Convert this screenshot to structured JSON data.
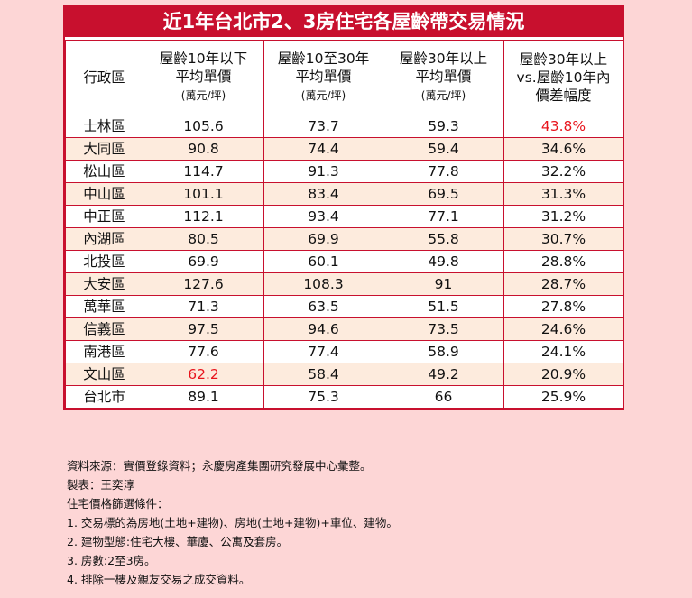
{
  "chart_data": {
    "type": "table",
    "title": "近1年台北市2、3房住宅各屋齡帶交易情況",
    "columns": [
      {
        "lines": [
          "行政區"
        ],
        "unit": ""
      },
      {
        "lines": [
          "屋齡10年以下",
          "平均單價"
        ],
        "unit": "(萬元/坪)"
      },
      {
        "lines": [
          "屋齡10至30年",
          "平均單價"
        ],
        "unit": "(萬元/坪)"
      },
      {
        "lines": [
          "屋齡30年以上",
          "平均單價"
        ],
        "unit": "(萬元/坪)"
      },
      {
        "lines": [
          "屋齡30年以上",
          "vs.屋齡10年內",
          "價差幅度"
        ],
        "unit": ""
      }
    ],
    "rows": [
      {
        "district": "士林區",
        "age_under_10": "105.6",
        "age_10_30": "73.7",
        "age_over_30": "59.3",
        "gap": "43.8%"
      },
      {
        "district": "大同區",
        "age_under_10": "90.8",
        "age_10_30": "74.4",
        "age_over_30": "59.4",
        "gap": "34.6%"
      },
      {
        "district": "松山區",
        "age_under_10": "114.7",
        "age_10_30": "91.3",
        "age_over_30": "77.8",
        "gap": "32.2%"
      },
      {
        "district": "中山區",
        "age_under_10": "101.1",
        "age_10_30": "83.4",
        "age_over_30": "69.5",
        "gap": "31.3%"
      },
      {
        "district": "中正區",
        "age_under_10": "112.1",
        "age_10_30": "93.4",
        "age_over_30": "77.1",
        "gap": "31.2%"
      },
      {
        "district": "內湖區",
        "age_under_10": "80.5",
        "age_10_30": "69.9",
        "age_over_30": "55.8",
        "gap": "30.7%"
      },
      {
        "district": "北投區",
        "age_under_10": "69.9",
        "age_10_30": "60.1",
        "age_over_30": "49.8",
        "gap": "28.8%"
      },
      {
        "district": "大安區",
        "age_under_10": "127.6",
        "age_10_30": "108.3",
        "age_over_30": "91",
        "gap": "28.7%"
      },
      {
        "district": "萬華區",
        "age_under_10": "71.3",
        "age_10_30": "63.5",
        "age_over_30": "51.5",
        "gap": "27.8%"
      },
      {
        "district": "信義區",
        "age_under_10": "97.5",
        "age_10_30": "94.6",
        "age_over_30": "73.5",
        "gap": "24.6%"
      },
      {
        "district": "南港區",
        "age_under_10": "77.6",
        "age_10_30": "77.4",
        "age_over_30": "58.9",
        "gap": "24.1%"
      },
      {
        "district": "文山區",
        "age_under_10": "62.2",
        "age_10_30": "58.4",
        "age_over_30": "49.2",
        "gap": "20.9%"
      },
      {
        "district": "台北市",
        "age_under_10": "89.1",
        "age_10_30": "75.3",
        "age_over_30": "66",
        "gap": "25.9%"
      }
    ],
    "highlights": [
      {
        "row": 0,
        "col": "gap"
      },
      {
        "row": 11,
        "col": "age_under_10"
      }
    ],
    "colors": {
      "accent": "#c8102e",
      "highlight": "#e8141c",
      "stripe": "#fdebdd",
      "background": "#fdd6d6"
    }
  },
  "notes": [
    "資料來源：實價登錄資料；永慶房產集團研究發展中心彙整。",
    "製表：王奕淳",
    "住宅價格篩選條件：",
    "1. 交易標的為房地(土地+建物)、房地(土地+建物)+車位、建物。",
    "2. 建物型態:住宅大樓、華廈、公寓及套房。",
    "3. 房數:2至3房。",
    "4. 排除一樓及親友交易之成交資料。"
  ]
}
